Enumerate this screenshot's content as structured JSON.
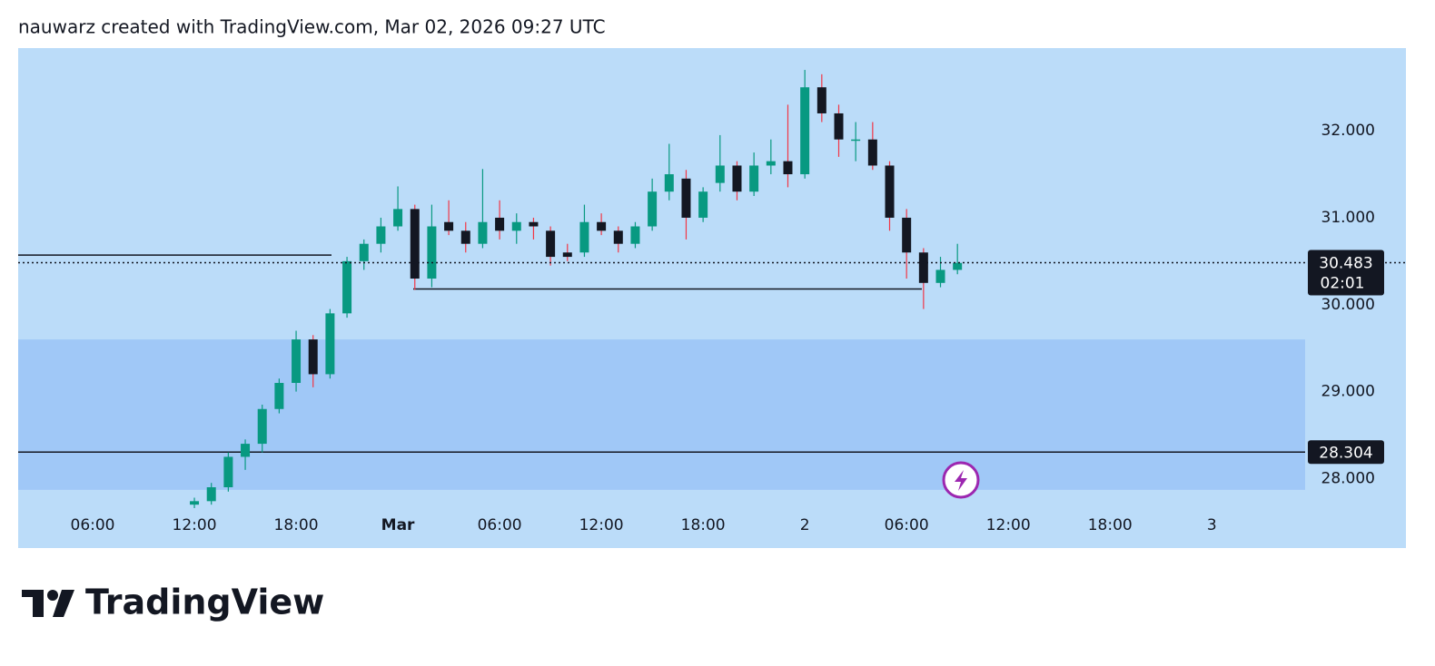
{
  "header": "nauwarz created with TradingView.com, Mar 02, 2026 09:27 UTC",
  "brand": "TradingView",
  "chart_data": {
    "type": "candlestick",
    "categories": [
      null,
      null,
      null,
      null,
      "06:00",
      null,
      null,
      null,
      null,
      null,
      "12:00",
      null,
      null,
      null,
      null,
      null,
      "18:00",
      null,
      null,
      null,
      null,
      null,
      "Mar",
      null,
      null,
      null,
      null,
      null,
      "06:00",
      null,
      null,
      null,
      null,
      null,
      "12:00",
      null,
      null,
      null,
      null,
      null,
      "18:00",
      null,
      null,
      null,
      null,
      null,
      "2",
      null,
      null,
      null,
      null,
      null,
      "06:00",
      null,
      null,
      null,
      null,
      null,
      "12:00",
      null,
      null,
      null,
      null,
      null,
      "18:00",
      null,
      null,
      null,
      null,
      null,
      "3",
      null,
      null,
      null,
      null,
      null
    ],
    "open": [
      null,
      null,
      null,
      null,
      null,
      null,
      null,
      null,
      null,
      null,
      27.7,
      27.74,
      27.9,
      28.25,
      28.4,
      28.8,
      29.1,
      29.6,
      29.2,
      29.9,
      30.5,
      30.7,
      30.9,
      31.1,
      30.3,
      30.95,
      30.85,
      30.7,
      31.0,
      30.85,
      30.95,
      30.85,
      30.6,
      30.6,
      30.95,
      30.85,
      30.7,
      30.9,
      31.3,
      31.45,
      31.0,
      31.4,
      31.6,
      31.3,
      31.6,
      31.65,
      31.5,
      32.5,
      32.2,
      31.9,
      31.9,
      31.6,
      31.0,
      30.6,
      30.25,
      30.4,
      null,
      null,
      null,
      null,
      null,
      null,
      null,
      null,
      null,
      null,
      null,
      null,
      null,
      null,
      null,
      null,
      null,
      null,
      null,
      null
    ],
    "high": [
      null,
      null,
      null,
      null,
      null,
      null,
      null,
      null,
      null,
      null,
      27.78,
      27.95,
      28.3,
      28.45,
      28.85,
      29.15,
      29.7,
      29.65,
      29.95,
      30.55,
      30.75,
      31.0,
      31.36,
      31.15,
      31.15,
      31.2,
      30.95,
      31.56,
      31.2,
      31.05,
      31.0,
      30.9,
      30.7,
      31.15,
      31.05,
      30.9,
      30.95,
      31.45,
      31.85,
      31.55,
      31.35,
      31.95,
      31.65,
      31.75,
      31.9,
      32.3,
      32.7,
      32.65,
      32.3,
      32.1,
      32.1,
      31.65,
      31.1,
      30.65,
      30.55,
      30.7,
      null,
      null,
      null,
      null,
      null,
      null,
      null,
      null,
      null,
      null,
      null,
      null,
      null,
      null,
      null,
      null,
      null,
      null,
      null,
      null
    ],
    "low": [
      null,
      null,
      null,
      null,
      null,
      null,
      null,
      null,
      null,
      null,
      27.66,
      27.7,
      27.85,
      28.1,
      28.3,
      28.75,
      29.0,
      29.05,
      29.15,
      29.85,
      30.4,
      30.6,
      30.85,
      30.17,
      30.2,
      30.8,
      30.6,
      30.65,
      30.75,
      30.7,
      30.75,
      30.45,
      30.5,
      30.55,
      30.8,
      30.6,
      30.65,
      30.85,
      31.2,
      30.75,
      30.95,
      31.3,
      31.2,
      31.25,
      31.5,
      31.35,
      31.45,
      32.1,
      31.7,
      31.65,
      31.55,
      30.85,
      30.3,
      29.95,
      30.2,
      30.35,
      null,
      null,
      null,
      null,
      null,
      null,
      null,
      null,
      null,
      null,
      null,
      null,
      null,
      null,
      null,
      null,
      null,
      null,
      null,
      null
    ],
    "close": [
      null,
      null,
      null,
      null,
      null,
      null,
      null,
      null,
      null,
      null,
      27.74,
      27.9,
      28.25,
      28.4,
      28.8,
      29.1,
      29.6,
      29.2,
      29.9,
      30.5,
      30.7,
      30.9,
      31.1,
      30.3,
      30.9,
      30.85,
      30.7,
      30.95,
      30.85,
      30.95,
      30.9,
      30.55,
      30.55,
      30.95,
      30.85,
      30.7,
      30.9,
      31.3,
      31.5,
      31.0,
      31.3,
      31.6,
      31.3,
      31.6,
      31.65,
      31.5,
      32.5,
      32.2,
      31.9,
      31.9,
      31.6,
      31.0,
      30.6,
      30.25,
      30.4,
      30.48,
      null,
      null,
      null,
      null,
      null,
      null,
      null,
      null,
      null,
      null,
      null,
      null,
      null,
      null,
      null,
      null,
      null,
      null,
      null,
      null
    ],
    "up_color": "#089981",
    "down_color": "#131722",
    "down_wick_color": "#f23645",
    "ylim": [
      27.66,
      32.93
    ],
    "yticks": [
      {
        "value": 28,
        "label": "28.000"
      },
      {
        "value": 29,
        "label": "29.000"
      },
      {
        "value": 30,
        "label": "30.000"
      },
      {
        "value": 31,
        "label": "31.000"
      },
      {
        "value": 32,
        "label": "32.000"
      }
    ],
    "zone": [
      27.87,
      29.6
    ],
    "zone_color": "#a0c8f7",
    "background": "#bbdcf9",
    "levels": [
      {
        "value": 30.57
      },
      {
        "value": 30.18
      },
      {
        "value": 28.304,
        "label": "28.304"
      }
    ],
    "last_price": {
      "value": 30.483,
      "label": "30.483",
      "countdown": "02:01"
    }
  }
}
